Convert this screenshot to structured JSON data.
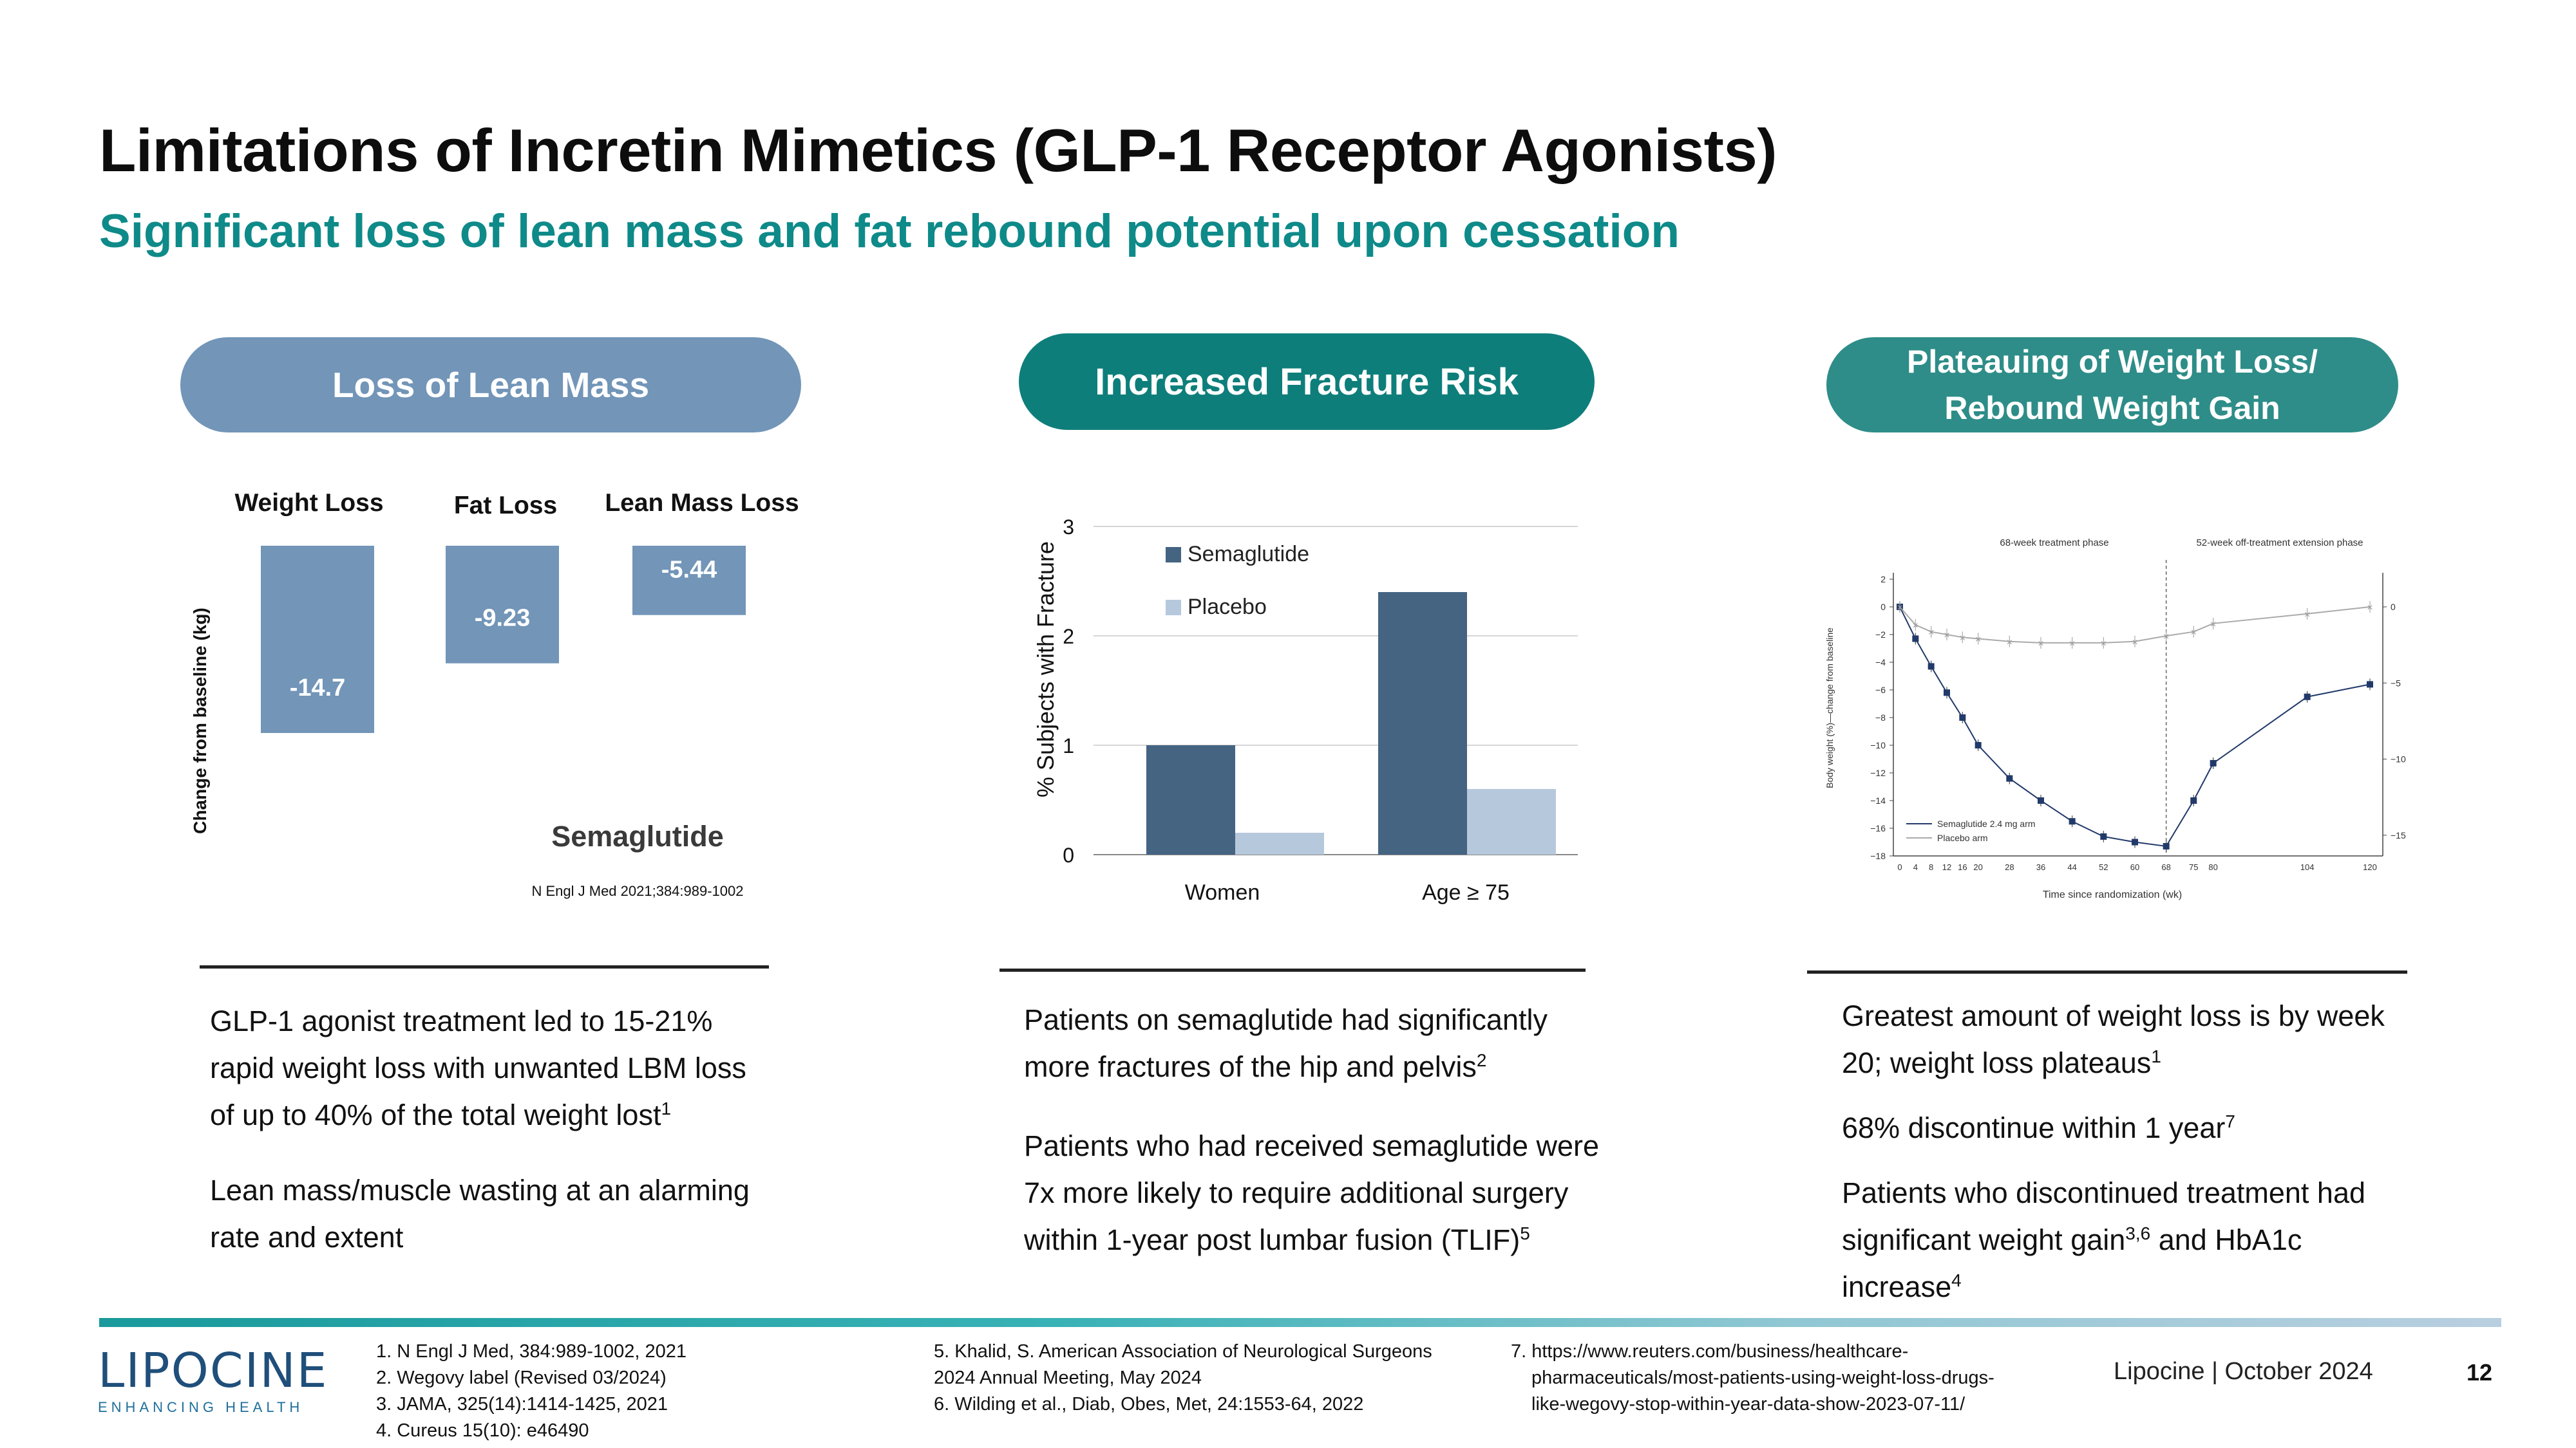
{
  "header": {
    "title": "Limitations of Incretin Mimetics (GLP-1 Receptor Agonists)",
    "subtitle": "Significant loss of lean mass and fat rebound potential upon cessation"
  },
  "colors": {
    "accent_teal": "#0e8a89",
    "pill_lean": "#7295b8",
    "pill_fracture": "#0e7e7b",
    "pill_plateau": "#2e8d88",
    "bar_blue": "#7295b8",
    "bar_dark": "#446482",
    "bar_light": "#b6c8dc"
  },
  "col1": {
    "pill": "Loss of Lean Mass",
    "ylabel": "Change from baseline (kg)",
    "series_label": "Semaglutide",
    "citation": "N Engl J Med 2021;384:989-1002",
    "text": {
      "p1_main": "GLP-1 agonist treatment led to 15-21% rapid weight loss with unwanted LBM loss of up to 40% of the total weight lost",
      "p1_sup": "1",
      "p2": "Lean mass/muscle wasting at an alarming rate and extent"
    }
  },
  "chart_data": [
    {
      "type": "bar",
      "categories": [
        "Weight Loss",
        "Fat Loss",
        "Lean Mass Loss"
      ],
      "values": [
        -14.7,
        -9.23,
        -5.44
      ],
      "value_labels": [
        "-14.7",
        "-9.23",
        "-5.44"
      ],
      "ylabel": "Change from baseline (kg)",
      "ylim": [
        -16,
        0
      ],
      "series": [
        {
          "name": "Semaglutide",
          "values": [
            -14.7,
            -9.23,
            -5.44
          ]
        }
      ]
    },
    {
      "type": "bar",
      "categories": [
        "Women",
        "Age ≥ 75"
      ],
      "ylabel": "% Subjects with Fracture",
      "ylim": [
        0,
        3
      ],
      "yticks": [
        "0",
        "1",
        "2",
        "3"
      ],
      "series": [
        {
          "name": "Semaglutide",
          "values": [
            1.0,
            2.4
          ]
        },
        {
          "name": "Placebo",
          "values": [
            0.2,
            0.6
          ]
        }
      ],
      "legend": "top-left"
    },
    {
      "type": "line",
      "title_left": "68-week treatment phase",
      "title_right": "52-week off-treatment extension phase",
      "xlabel": "Time since randomization (wk)",
      "ylabel": "Body weight (%)—change from baseline",
      "x_ticks": [
        "0",
        "4",
        "8",
        "12",
        "16",
        "20",
        "28",
        "36",
        "44",
        "52",
        "60",
        "68",
        "75",
        "80",
        "104",
        "120"
      ],
      "y_left_ticks": [
        "2",
        "0",
        "−2",
        "−4",
        "−6",
        "−8",
        "−10",
        "−12",
        "−14",
        "−16",
        "−18"
      ],
      "y_right_ticks": [
        "0",
        "−5",
        "−10",
        "−15"
      ],
      "ylim": [
        -18,
        2
      ],
      "series": [
        {
          "name": "Semaglutide 2.4 mg arm",
          "x": [
            0,
            4,
            8,
            12,
            16,
            20,
            28,
            36,
            44,
            52,
            60,
            68,
            75,
            80,
            104,
            120
          ],
          "y": [
            0,
            -2.3,
            -4.3,
            -6.2,
            -8,
            -10,
            -12.4,
            -14,
            -15.5,
            -16.6,
            -17.0,
            -17.3,
            -14,
            -11.3,
            -6.5,
            -5.6
          ]
        },
        {
          "name": "Placebo arm",
          "x": [
            0,
            4,
            8,
            12,
            16,
            20,
            28,
            36,
            44,
            52,
            60,
            68,
            75,
            80,
            104,
            120
          ],
          "y": [
            0,
            -1.3,
            -1.8,
            -2.0,
            -2.2,
            -2.3,
            -2.5,
            -2.6,
            -2.6,
            -2.6,
            -2.5,
            -2.1,
            -1.8,
            -1.2,
            -0.5,
            0
          ]
        }
      ],
      "phase_divider_x": 68
    }
  ],
  "col2": {
    "pill": "Increased Fracture Risk",
    "text": {
      "p1_main": "Patients on semaglutide had significantly more fractures of the hip and pelvis",
      "p1_sup": "2",
      "p2_main": "Patients who had received semaglutide were 7x more likely to require additional surgery within 1-year post lumbar fusion (TLIF)",
      "p2_sup": "5"
    }
  },
  "col3": {
    "pill_line1": "Plateauing of Weight Loss/",
    "pill_line2": "Rebound Weight Gain",
    "text": {
      "p1_main": "Greatest amount of weight loss is by week 20; weight loss plateaus",
      "p1_sup": "1",
      "p2_main": "68% discontinue within 1 year",
      "p2_sup": "7",
      "p3_main": "Patients who discontinued treatment had significant weight gain",
      "p3_sup": "3,6",
      "p3_tail": " and HbA1c increase",
      "p3_sup2": "4"
    }
  },
  "footer": {
    "logo": "LIPOCINE",
    "logo_tag": "ENHANCING HEALTH",
    "refs_a": [
      "1. N Engl J Med, 384:989-1002, 2021",
      "2. Wegovy label (Revised 03/2024)",
      "3. JAMA, 325(14):1414-1425, 2021",
      "4. Cureus 15(10): e46490"
    ],
    "refs_b": [
      "5. Khalid, S. American Association of Neurological Surgeons",
      "2024 Annual Meeting, May 2024",
      "6. Wilding et al., Diab, Obes, Met, 24:1553-64, 2022"
    ],
    "refs_c": [
      "7. https://www.reuters.com/business/healthcare-",
      "pharmaceuticals/most-patients-using-weight-loss-drugs-",
      "like-wegovy-stop-within-year-data-show-2023-07-11/"
    ],
    "company_date": "Lipocine | October 2024",
    "page_number": "12"
  }
}
